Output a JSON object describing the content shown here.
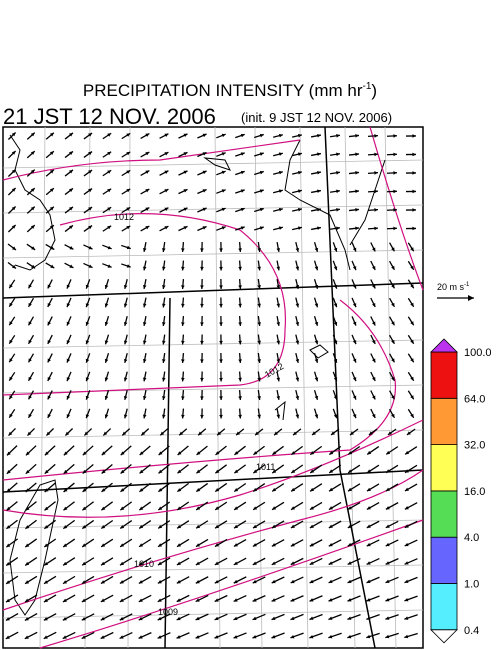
{
  "header": {
    "title": "PRECIPITATION INTENSITY (mm hr",
    "title_exponent": "-1",
    "title_close": ")",
    "valid_time": "21 JST 12 NOV. 2006",
    "init_time": "(init. 9 JST 12 NOV. 2006)"
  },
  "map": {
    "contour_labels": [
      "1012",
      "1012",
      "1011",
      "1010",
      "1009"
    ]
  },
  "wind_scale": {
    "label": "20 m s",
    "exponent": "-1"
  },
  "colorbar": {
    "levels": [
      {
        "value": 0.4,
        "label": "0.4"
      },
      {
        "value": 1,
        "label": "1.0"
      },
      {
        "value": 4,
        "label": "4.0"
      },
      {
        "value": 16,
        "label": "16.0"
      },
      {
        "value": 32,
        "label": "32.0"
      },
      {
        "value": 64,
        "label": "64.0"
      },
      {
        "value": 100,
        "label": "100.0"
      }
    ],
    "colors": [
      "#55eeff",
      "#6666ff",
      "#55dd55",
      "#ffff55",
      "#ff9933",
      "#ee1111"
    ],
    "over_color": "#bb33ee",
    "under_color": "#ffffff"
  }
}
